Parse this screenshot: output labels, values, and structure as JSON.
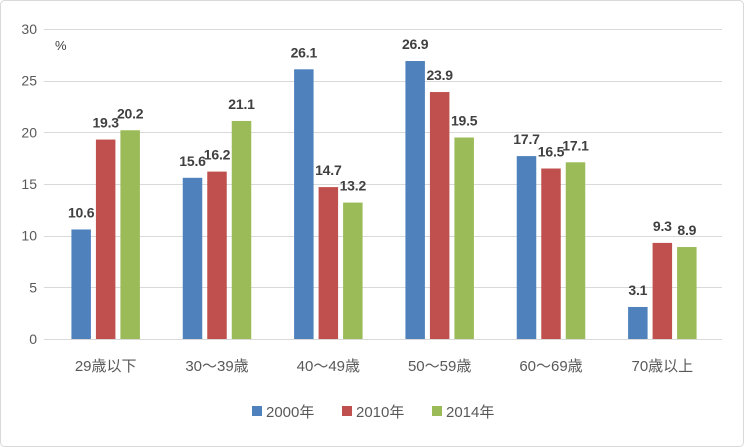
{
  "chart_data": {
    "type": "bar",
    "categories": [
      "29歳以下",
      "30～39歳",
      "40～49歳",
      "50～59歳",
      "60～69歳",
      "70歳以上"
    ],
    "series": [
      {
        "name": "2000年",
        "color": "#4F81BD",
        "values": [
          10.6,
          15.6,
          26.1,
          26.9,
          17.7,
          3.1
        ]
      },
      {
        "name": "2010年",
        "color": "#C0504D",
        "values": [
          19.3,
          16.2,
          14.7,
          23.9,
          16.5,
          9.3
        ]
      },
      {
        "name": "2014年",
        "color": "#9BBB59",
        "values": [
          20.2,
          21.1,
          13.2,
          19.5,
          17.1,
          8.9
        ]
      }
    ],
    "ylabel": "%",
    "ylim": [
      0,
      30
    ],
    "yticks": [
      0,
      5,
      10,
      15,
      20,
      25,
      30
    ],
    "grid": true,
    "legend": "bottom",
    "data_labels": true
  }
}
